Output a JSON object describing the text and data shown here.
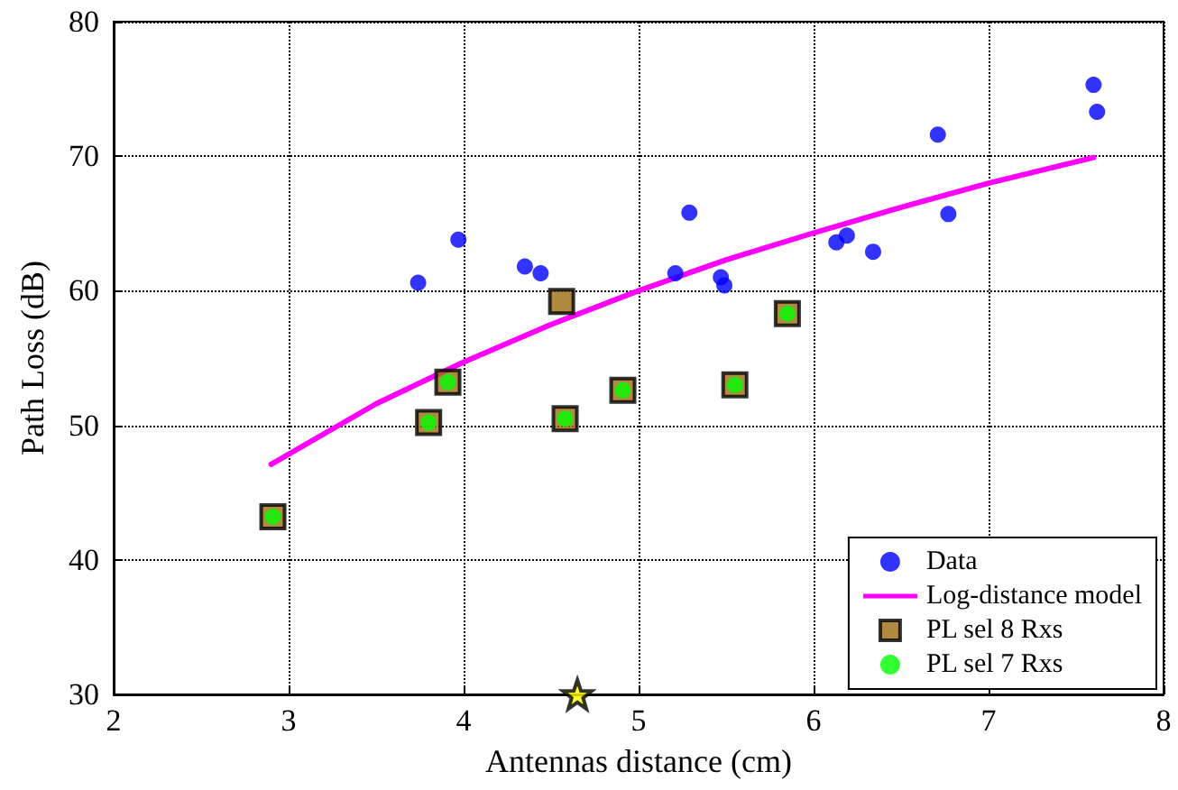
{
  "chart_data": {
    "type": "scatter",
    "xlabel": "Antennas distance (cm)",
    "ylabel": "Path Loss (dB)",
    "xlim": [
      2,
      8
    ],
    "xticks": [
      2,
      3,
      4,
      5,
      6,
      7,
      8
    ],
    "ylim": [
      30,
      80
    ],
    "yticks": [
      30,
      40,
      50,
      60,
      70,
      80
    ],
    "grid": true,
    "legend": "bottom right",
    "line_style": "dotted",
    "series": [
      {
        "name": "Data",
        "marker": "circle",
        "color": "#0000ff",
        "x": [
          3.74,
          3.97,
          4.35,
          4.44,
          5.21,
          5.29,
          5.47,
          5.49,
          6.13,
          6.19,
          6.34,
          6.71,
          6.77,
          7.6,
          7.62
        ],
        "values": [
          60.6,
          63.8,
          61.8,
          61.3,
          61.3,
          65.8,
          61.0,
          60.4,
          63.6,
          64.1,
          62.9,
          71.6,
          65.7,
          75.3,
          73.3
        ]
      },
      {
        "name": "Log-distance model",
        "type": "line",
        "marker": "none",
        "line_style": "solid",
        "color": "#ff00ff",
        "x": [
          2.9,
          3.5,
          4,
          4.5,
          5,
          5.5,
          6,
          6.5,
          7,
          7.6
        ],
        "values": [
          47.1,
          51.6,
          54.7,
          57.5,
          60.0,
          62.3,
          64.3,
          66.2,
          68.0,
          69.9
        ]
      },
      {
        "name": "PL sel 8 Rxs",
        "marker": "square",
        "color": "#9c6c14",
        "x": [
          2.91,
          3.8,
          3.91,
          4.56,
          4.58,
          4.91,
          5.55,
          5.85
        ],
        "values": [
          43.2,
          50.2,
          53.2,
          59.2,
          50.5,
          52.6,
          53.0,
          58.3
        ]
      },
      {
        "name": "PL sel 7 Rxs",
        "marker": "circle",
        "color": "#00ff00",
        "x": [
          2.91,
          3.8,
          3.91,
          4.58,
          4.91,
          5.55,
          5.85
        ],
        "values": [
          43.2,
          50.2,
          53.2,
          50.5,
          52.6,
          53.0,
          58.3
        ]
      },
      {
        "marker": "star",
        "color": "#ffff00",
        "x": [
          4.65
        ],
        "values": [
          30
        ]
      }
    ]
  }
}
